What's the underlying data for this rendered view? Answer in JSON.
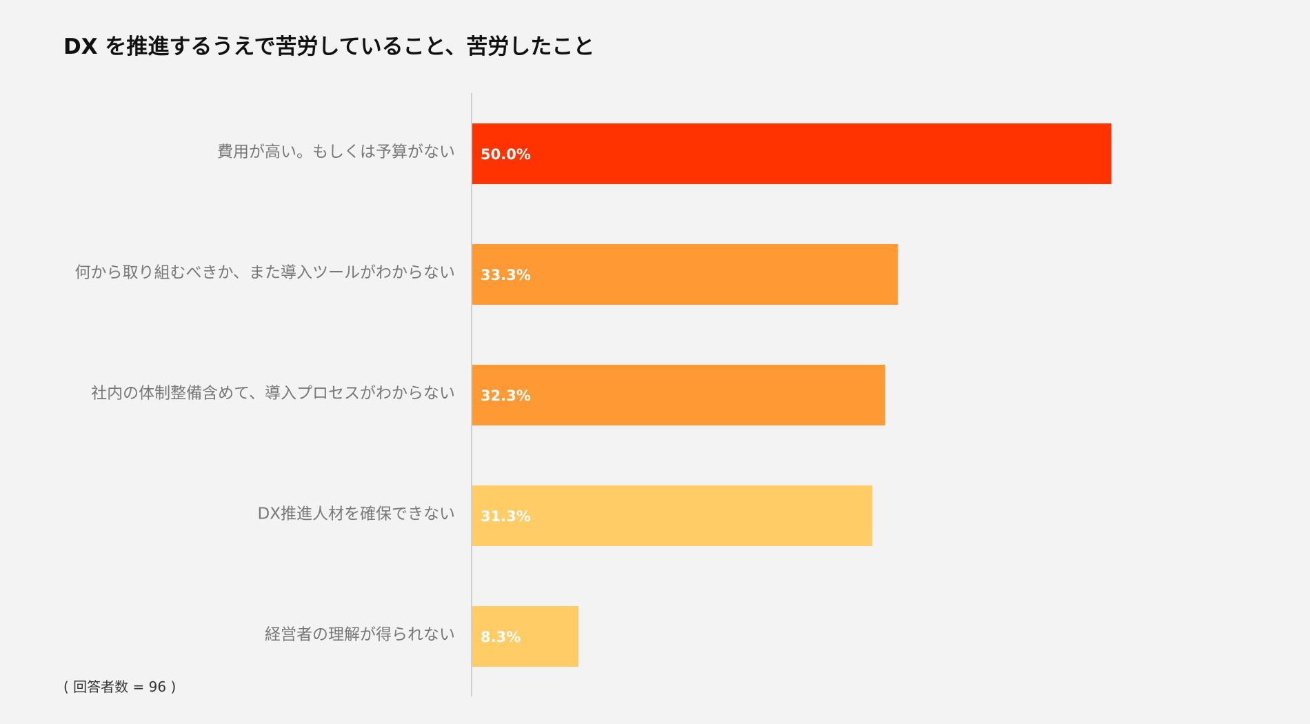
{
  "chart_data": {
    "type": "bar",
    "orientation": "horizontal",
    "title": "DX を推進するうえで苦労していること、苦労したこと",
    "categories": [
      "費用が高い。もしくは予算がない",
      "何から取り組むべきか、また導入ツールがわからない",
      "社内の体制整備含めて、導入プロセスがわからない",
      "DX推進人材を確保できない",
      "経営者の理解が得られない"
    ],
    "values": [
      50.0,
      33.3,
      32.3,
      31.3,
      8.3
    ],
    "value_labels": [
      "50.0%",
      "33.3%",
      "32.3%",
      "31.3%",
      "8.3%"
    ],
    "colors": [
      "#ff3300",
      "#ff9933",
      "#ff9933",
      "#ffcc66",
      "#ffcc66"
    ],
    "xlim": [
      0,
      60
    ],
    "grid": false,
    "legend": "none",
    "note": "( 回答者数 = 96 )"
  }
}
